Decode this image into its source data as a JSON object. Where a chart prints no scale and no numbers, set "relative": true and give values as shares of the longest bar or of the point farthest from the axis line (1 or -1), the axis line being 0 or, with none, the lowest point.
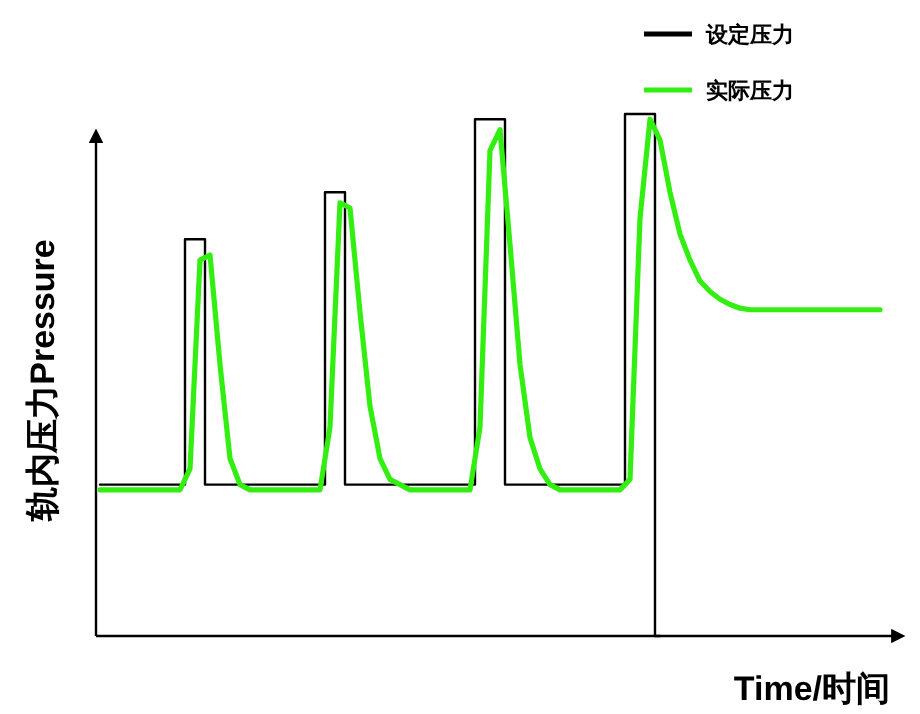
{
  "chart_data": {
    "type": "line",
    "relative": true,
    "xlabel": "Time/时间",
    "ylabel": "轨内压力Pressure",
    "legend": "top right",
    "categories": [
      null,
      null,
      null,
      null,
      null,
      null,
      null,
      null,
      null,
      null,
      null,
      null,
      null,
      null,
      null,
      null,
      null,
      null,
      null,
      null,
      null,
      null,
      null,
      null,
      null,
      null,
      null,
      null,
      null,
      null,
      null,
      null,
      null,
      null,
      null,
      null,
      null,
      null,
      null,
      null,
      null,
      null,
      null,
      null,
      null,
      null,
      null,
      null,
      null,
      null,
      null,
      null,
      null,
      null,
      null,
      null,
      null,
      null,
      null,
      null,
      null,
      null,
      null,
      null,
      null,
      null,
      null,
      null,
      null,
      null,
      null,
      null,
      null,
      null,
      null,
      null,
      null,
      null,
      null
    ],
    "series": [
      {
        "name": "设定压力",
        "type": "step",
        "color": "#000000",
        "values": [
          0.29,
          0.29,
          0.29,
          0.29,
          0.29,
          0.29,
          0.29,
          0.29,
          0.29,
          0.76,
          0.76,
          0.29,
          0.29,
          0.29,
          0.29,
          0.29,
          0.29,
          0.29,
          0.29,
          0.29,
          0.29,
          0.29,
          0.29,
          0.85,
          0.85,
          0.29,
          0.29,
          0.29,
          0.29,
          0.29,
          0.29,
          0.29,
          0.29,
          0.29,
          0.29,
          0.29,
          0.29,
          0.29,
          0.99,
          0.99,
          0.99,
          0.29,
          0.29,
          0.29,
          0.29,
          0.29,
          0.29,
          0.29,
          0.29,
          0.29,
          0.29,
          0.29,
          0.29,
          1,
          1,
          1,
          0,
          null,
          null,
          null,
          null,
          null,
          null,
          null,
          null,
          null,
          null,
          null,
          null,
          null,
          null,
          null,
          null,
          null,
          null,
          null,
          null,
          null,
          null
        ]
      },
      {
        "name": "实际压力",
        "type": "line",
        "color": "#33ee11",
        "values": [
          0.28,
          0.28,
          0.28,
          0.28,
          0.28,
          0.28,
          0.28,
          0.28,
          0.28,
          0.32,
          0.72,
          0.73,
          0.52,
          0.34,
          0.29,
          0.28,
          0.28,
          0.28,
          0.28,
          0.28,
          0.28,
          0.28,
          0.28,
          0.4,
          0.83,
          0.82,
          0.62,
          0.44,
          0.34,
          0.3,
          0.29,
          0.28,
          0.28,
          0.28,
          0.28,
          0.28,
          0.28,
          0.28,
          0.4,
          0.93,
          0.97,
          0.75,
          0.52,
          0.38,
          0.32,
          0.29,
          0.28,
          0.28,
          0.28,
          0.28,
          0.28,
          0.28,
          0.28,
          0.3,
          0.8,
          0.99,
          0.95,
          0.85,
          0.77,
          0.72,
          0.68,
          0.66,
          0.645,
          0.635,
          0.628,
          0.625,
          0.625,
          0.625,
          0.625,
          0.625,
          0.625,
          0.625,
          0.625,
          0.625,
          0.625,
          0.625,
          0.625,
          0.625,
          0.625
        ]
      }
    ]
  }
}
